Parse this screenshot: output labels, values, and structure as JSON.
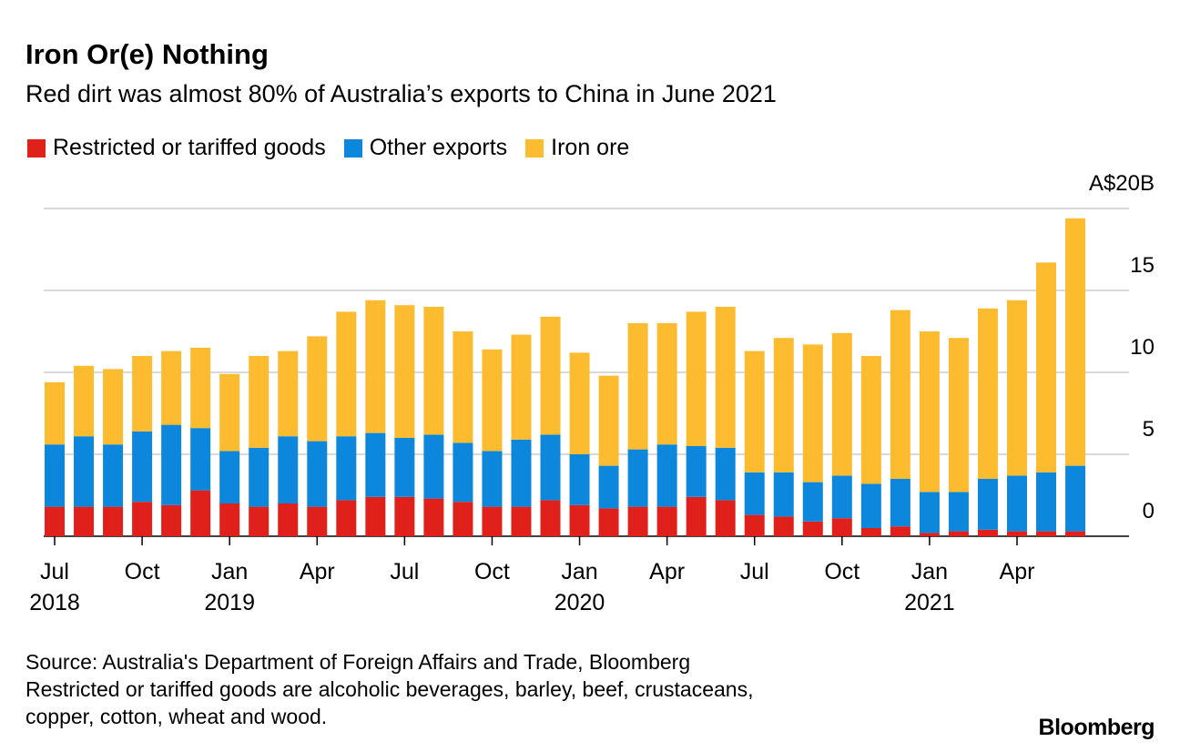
{
  "title": "Iron Or(e) Nothing",
  "subtitle": "Red dirt was almost 80% of Australia’s exports to China in June 2021",
  "source": "Source: Australia's Department of Foreign Affairs and Trade, Bloomberg",
  "note_line1": "Restricted or tariffed goods are alcoholic beverages, barley, beef, crustaceans,",
  "note_line2": "copper, cotton, wheat and wood.",
  "logo": "Bloomberg",
  "chart_data": {
    "type": "bar",
    "stacked": true,
    "title": "Iron Or(e) Nothing",
    "ylabel": "A$B",
    "ylim": [
      0,
      20
    ],
    "yticks": [
      0,
      5,
      10,
      15,
      20
    ],
    "ytick_labels": [
      "0",
      "5",
      "10",
      "15",
      "A$20B"
    ],
    "grid": true,
    "legend_position": "top-left",
    "categories": [
      "Jul 2018",
      "Aug 2018",
      "Sep 2018",
      "Oct 2018",
      "Nov 2018",
      "Dec 2018",
      "Jan 2019",
      "Feb 2019",
      "Mar 2019",
      "Apr 2019",
      "May 2019",
      "Jun 2019",
      "Jul 2019",
      "Aug 2019",
      "Sep 2019",
      "Oct 2019",
      "Nov 2019",
      "Dec 2019",
      "Jan 2020",
      "Feb 2020",
      "Mar 2020",
      "Apr 2020",
      "May 2020",
      "Jun 2020",
      "Jul 2020",
      "Aug 2020",
      "Sep 2020",
      "Oct 2020",
      "Nov 2020",
      "Dec 2020",
      "Jan 2021",
      "Feb 2021",
      "Mar 2021",
      "Apr 2021",
      "May 2021",
      "Jun 2021"
    ],
    "xticks": [
      {
        "index": 0,
        "month": "Jul",
        "year": "2018"
      },
      {
        "index": 3,
        "month": "Oct",
        "year": ""
      },
      {
        "index": 6,
        "month": "Jan",
        "year": "2019"
      },
      {
        "index": 9,
        "month": "Apr",
        "year": ""
      },
      {
        "index": 12,
        "month": "Jul",
        "year": ""
      },
      {
        "index": 15,
        "month": "Oct",
        "year": ""
      },
      {
        "index": 18,
        "month": "Jan",
        "year": "2020"
      },
      {
        "index": 21,
        "month": "Apr",
        "year": ""
      },
      {
        "index": 24,
        "month": "Jul",
        "year": ""
      },
      {
        "index": 27,
        "month": "Oct",
        "year": ""
      },
      {
        "index": 30,
        "month": "Jan",
        "year": "2021"
      },
      {
        "index": 33,
        "month": "Apr",
        "year": ""
      }
    ],
    "series": [
      {
        "name": "Restricted or tariffed goods",
        "color": "#E0201B",
        "values": [
          1.8,
          1.8,
          1.8,
          2.1,
          1.9,
          2.8,
          2.0,
          1.8,
          2.0,
          1.8,
          2.2,
          2.4,
          2.4,
          2.3,
          2.1,
          1.8,
          1.8,
          2.2,
          1.9,
          1.7,
          1.8,
          1.8,
          2.4,
          2.2,
          1.3,
          1.2,
          0.9,
          1.1,
          0.5,
          0.6,
          0.2,
          0.3,
          0.4,
          0.3,
          0.3,
          0.3
        ]
      },
      {
        "name": "Other exports",
        "color": "#0D87DC",
        "values": [
          3.8,
          4.3,
          3.8,
          4.3,
          4.9,
          3.8,
          3.2,
          3.6,
          4.1,
          4.0,
          3.9,
          3.9,
          3.6,
          3.9,
          3.6,
          3.4,
          4.1,
          4.0,
          3.1,
          2.6,
          3.5,
          3.8,
          3.1,
          3.2,
          2.6,
          2.7,
          2.4,
          2.6,
          2.7,
          2.9,
          2.5,
          2.4,
          3.1,
          3.4,
          3.6,
          4.0
        ]
      },
      {
        "name": "Iron ore",
        "color": "#FDBB30",
        "values": [
          3.8,
          4.3,
          4.6,
          4.6,
          4.5,
          4.9,
          4.7,
          5.6,
          5.2,
          6.4,
          7.6,
          8.1,
          8.1,
          7.8,
          6.8,
          6.2,
          6.4,
          7.2,
          6.2,
          5.5,
          7.7,
          7.4,
          8.2,
          8.6,
          7.4,
          8.2,
          8.4,
          8.7,
          7.8,
          10.3,
          9.8,
          9.4,
          10.4,
          10.7,
          12.8,
          15.1
        ]
      }
    ]
  }
}
